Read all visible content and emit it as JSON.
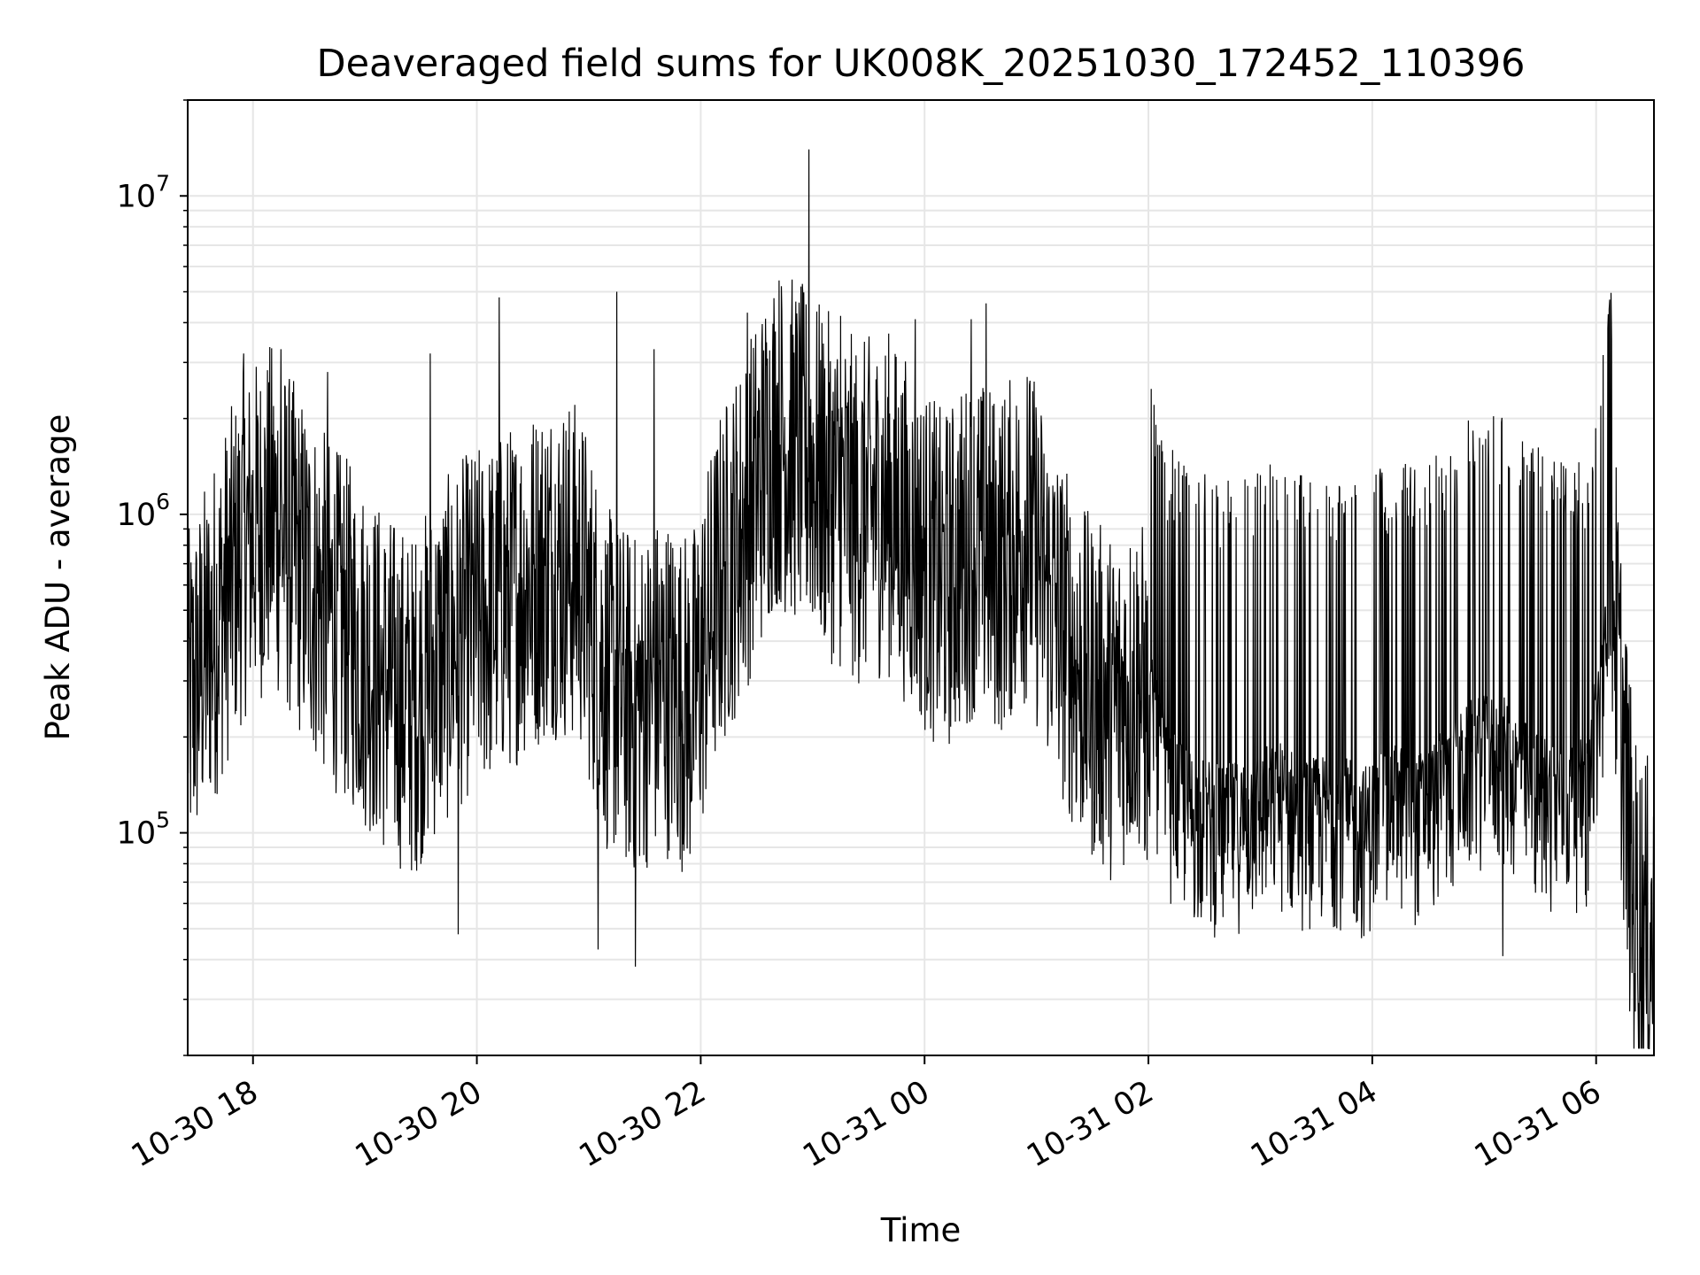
{
  "chart_data": {
    "type": "line",
    "title": "Deaveraged field sums for UK008K_20251030_172452_110396",
    "xlabel": "Time",
    "ylabel": "Peak ADU - average",
    "x_start": "10-30 17:25",
    "x_end": "10-31 06:31",
    "xlim": [
      "10-30 17:25",
      "10-31 06:31"
    ],
    "ylim": [
      20000,
      20000000
    ],
    "yscale": "log",
    "grid": true,
    "x_ticks": [
      "10-30 18",
      "10-30 20",
      "10-30 22",
      "10-31 00",
      "10-31 02",
      "10-31 04",
      "10-31 06"
    ],
    "y_ticks": [
      {
        "base": "10",
        "exp": "5",
        "value": 100000
      },
      {
        "base": "10",
        "exp": "6",
        "value": 1000000
      },
      {
        "base": "10",
        "exp": "7",
        "value": 10000000
      }
    ],
    "line_color": "#000000",
    "series": [
      {
        "x": [
          "10-30 17:25",
          "10-30 17:40",
          "10-30 17:55",
          "10-30 18:10",
          "10-30 18:25",
          "10-30 18:40",
          "10-30 18:55",
          "10-30 19:10",
          "10-30 19:25",
          "10-30 19:40",
          "10-30 19:55",
          "10-30 20:10",
          "10-30 20:25",
          "10-30 20:40",
          "10-30 20:55",
          "10-30 21:10",
          "10-30 21:25",
          "10-30 21:40",
          "10-30 21:55",
          "10-30 22:10",
          "10-30 22:25",
          "10-30 22:40",
          "10-30 22:55",
          "10-30 23:10",
          "10-30 23:25",
          "10-30 23:40",
          "10-30 23:55",
          "10-31 00:10",
          "10-31 00:25",
          "10-31 00:40",
          "10-31 00:55",
          "10-31 01:10",
          "10-31 01:25",
          "10-31 01:40",
          "10-31 01:55",
          "10-31 02:10",
          "10-31 02:25",
          "10-31 02:40",
          "10-31 02:55",
          "10-31 03:10",
          "10-31 03:25",
          "10-31 03:40",
          "10-31 03:55",
          "10-31 04:10",
          "10-31 04:25",
          "10-31 04:40",
          "10-31 04:55",
          "10-31 05:10",
          "10-31 05:25",
          "10-31 05:40",
          "10-31 05:55",
          "10-31 06:10",
          "10-31 06:20",
          "10-31 06:31"
        ],
        "y": [
          250000,
          450000,
          800000,
          1000000,
          700000,
          500000,
          400000,
          300000,
          250000,
          350000,
          450000,
          500000,
          600000,
          700000,
          650000,
          300000,
          250000,
          300000,
          250000,
          600000,
          1000000,
          1800000,
          1500000,
          1200000,
          1000000,
          1100000,
          800000,
          600000,
          800000,
          700000,
          900000,
          500000,
          300000,
          250000,
          300000,
          120000,
          100000,
          90000,
          100000,
          110000,
          95000,
          100000,
          90000,
          110000,
          100000,
          120000,
          150000,
          150000,
          120000,
          110000,
          110000,
          500000,
          60000,
          45000
        ],
        "spikes": [
          {
            "x": "10-30 17:55",
            "y": 3200000
          },
          {
            "x": "10-30 18:15",
            "y": 3300000
          },
          {
            "x": "10-30 18:40",
            "y": 2800000
          },
          {
            "x": "10-30 19:35",
            "y": 3200000
          },
          {
            "x": "10-30 20:12",
            "y": 4800000
          },
          {
            "x": "10-30 21:15",
            "y": 5000000
          },
          {
            "x": "10-30 21:35",
            "y": 3300000
          },
          {
            "x": "10-30 22:25",
            "y": 4300000
          },
          {
            "x": "10-30 22:58",
            "y": 14000000
          },
          {
            "x": "10-30 23:15",
            "y": 4200000
          },
          {
            "x": "10-30 23:55",
            "y": 4100000
          },
          {
            "x": "10-31 00:25",
            "y": 4100000
          },
          {
            "x": "10-31 00:33",
            "y": 4600000
          },
          {
            "x": "10-31 00:55",
            "y": 2700000
          },
          {
            "x": "10-31 05:10",
            "y": 2200000
          },
          {
            "x": "10-30 21:25",
            "y": 38000
          },
          {
            "x": "10-30 19:50",
            "y": 48000
          },
          {
            "x": "10-30 21:05",
            "y": 43000
          },
          {
            "x": "10-31 05:10",
            "y": 41000
          },
          {
            "x": "10-31 06:27",
            "y": 27000
          }
        ]
      }
    ]
  }
}
